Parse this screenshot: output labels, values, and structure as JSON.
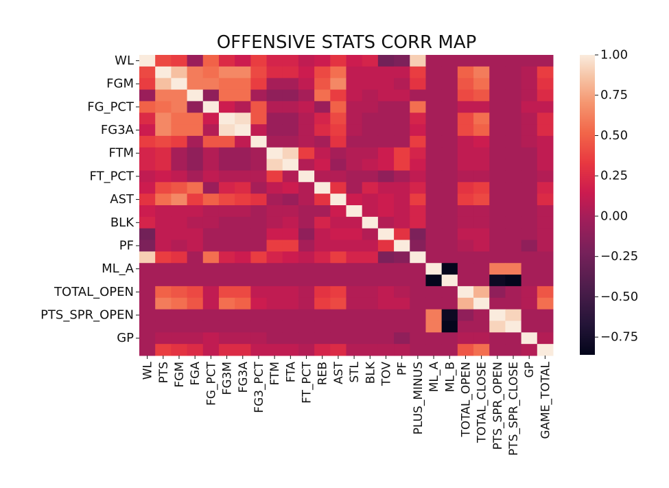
{
  "chart_data": {
    "type": "heatmap",
    "title": "OFFENSIVE STATS CORR MAP",
    "x_labels": [
      "WL",
      "PTS",
      "FGM",
      "FGA",
      "FG_PCT",
      "FG3M",
      "FG3A",
      "FG3_PCT",
      "FTM",
      "FTA",
      "FT_PCT",
      "REB",
      "AST",
      "STL",
      "BLK",
      "TOV",
      "PF",
      "PLUS_MINUS",
      "ML_A",
      "ML_B",
      "TOTAL_OPEN",
      "TOTAL_CLOSE",
      "PTS_SPR_OPEN",
      "PTS_SPR_CLOSE",
      "GP",
      "GAME_TOTAL"
    ],
    "y_labels": [
      "WL",
      "",
      "FGM",
      "",
      "FG_PCT",
      "",
      "FG3A",
      "",
      "FTM",
      "",
      "FT_PCT",
      "",
      "AST",
      "",
      "BLK",
      "",
      "PF",
      "",
      "ML_A",
      "",
      "TOTAL_OPEN",
      "",
      "PTS_SPR_OPEN",
      "",
      "GP",
      ""
    ],
    "values": [
      [
        1.0,
        0.4,
        0.35,
        -0.05,
        0.5,
        0.25,
        0.15,
        0.35,
        0.2,
        0.2,
        0.1,
        0.15,
        0.3,
        0.15,
        0.2,
        -0.25,
        -0.2,
        0.9,
        0.0,
        0.0,
        0.0,
        0.0,
        0.0,
        0.0,
        0.0,
        0.0
      ],
      [
        0.4,
        1.0,
        0.85,
        0.6,
        0.55,
        0.65,
        0.65,
        0.4,
        0.25,
        0.25,
        0.15,
        0.4,
        0.55,
        0.1,
        0.1,
        0.1,
        0.1,
        0.35,
        0.0,
        0.0,
        0.5,
        0.6,
        0.0,
        0.0,
        0.05,
        0.35
      ],
      [
        0.35,
        0.85,
        1.0,
        0.6,
        0.6,
        0.55,
        0.55,
        0.35,
        0.0,
        0.0,
        0.1,
        0.45,
        0.65,
        0.1,
        0.1,
        0.1,
        0.05,
        0.3,
        0.0,
        0.0,
        0.45,
        0.55,
        0.0,
        0.0,
        0.05,
        0.3
      ],
      [
        -0.05,
        0.6,
        0.6,
        1.0,
        -0.1,
        0.55,
        0.55,
        0.0,
        -0.1,
        -0.1,
        0.0,
        0.55,
        0.35,
        0.1,
        0.05,
        0.1,
        0.1,
        0.0,
        0.0,
        0.0,
        0.4,
        0.45,
        0.0,
        0.0,
        0.05,
        0.25
      ],
      [
        0.5,
        0.55,
        0.6,
        -0.1,
        1.0,
        0.15,
        0.05,
        0.45,
        0.05,
        0.05,
        0.1,
        -0.05,
        0.5,
        0.05,
        0.05,
        0.0,
        0.0,
        0.55,
        0.0,
        0.0,
        0.1,
        0.1,
        0.0,
        0.0,
        0.1,
        0.1
      ],
      [
        0.25,
        0.65,
        0.55,
        0.55,
        0.15,
        1.0,
        0.95,
        0.45,
        -0.05,
        -0.05,
        0.05,
        0.2,
        0.4,
        0.05,
        0.0,
        0.0,
        0.0,
        0.2,
        0.0,
        0.0,
        0.4,
        0.55,
        0.0,
        0.0,
        0.05,
        0.25
      ],
      [
        0.15,
        0.65,
        0.55,
        0.55,
        0.05,
        0.95,
        1.0,
        0.1,
        -0.05,
        -0.05,
        0.05,
        0.25,
        0.35,
        0.05,
        0.0,
        0.0,
        0.0,
        0.15,
        0.0,
        0.0,
        0.4,
        0.5,
        0.0,
        0.0,
        0.05,
        0.25
      ],
      [
        0.35,
        0.4,
        0.35,
        0.0,
        0.45,
        0.45,
        0.1,
        1.0,
        0.0,
        0.0,
        0.05,
        0.0,
        0.3,
        0.0,
        0.0,
        0.0,
        0.0,
        0.35,
        0.0,
        0.0,
        0.1,
        0.15,
        0.0,
        0.0,
        0.05,
        0.1
      ],
      [
        0.2,
        0.25,
        0.0,
        -0.1,
        0.05,
        -0.05,
        -0.05,
        0.0,
        1.0,
        0.92,
        0.35,
        0.1,
        0.0,
        0.05,
        0.05,
        0.15,
        0.35,
        0.2,
        0.0,
        0.0,
        0.1,
        0.1,
        0.0,
        0.0,
        0.0,
        0.1
      ],
      [
        0.2,
        0.25,
        0.0,
        -0.1,
        0.05,
        -0.05,
        -0.05,
        0.0,
        0.92,
        1.0,
        0.05,
        0.15,
        -0.05,
        0.05,
        0.1,
        0.15,
        0.35,
        0.15,
        0.0,
        0.0,
        0.1,
        0.1,
        0.0,
        0.0,
        0.0,
        0.1
      ],
      [
        0.1,
        0.15,
        0.1,
        0.0,
        0.1,
        0.05,
        0.05,
        0.05,
        0.35,
        0.05,
        1.0,
        0.05,
        0.05,
        0.0,
        0.0,
        -0.1,
        0.0,
        0.1,
        0.0,
        0.0,
        0.05,
        0.05,
        0.0,
        0.0,
        0.0,
        0.05
      ],
      [
        0.15,
        0.4,
        0.45,
        0.55,
        -0.05,
        0.2,
        0.25,
        0.0,
        0.1,
        0.15,
        0.05,
        1.0,
        0.3,
        0.0,
        0.2,
        0.1,
        0.1,
        0.2,
        0.0,
        0.0,
        0.3,
        0.35,
        0.0,
        0.0,
        0.0,
        0.2
      ],
      [
        0.3,
        0.55,
        0.65,
        0.35,
        0.5,
        0.4,
        0.35,
        0.3,
        0.0,
        -0.05,
        0.05,
        0.3,
        1.0,
        0.15,
        0.1,
        0.15,
        0.1,
        0.35,
        0.0,
        0.0,
        0.35,
        0.4,
        0.0,
        0.0,
        0.0,
        0.25
      ],
      [
        0.15,
        0.1,
        0.1,
        0.1,
        0.05,
        0.05,
        0.05,
        0.0,
        0.05,
        0.05,
        0.0,
        0.0,
        0.15,
        1.0,
        0.1,
        0.15,
        0.1,
        0.2,
        0.0,
        0.0,
        0.05,
        0.05,
        0.0,
        0.0,
        0.0,
        0.05
      ],
      [
        0.2,
        0.1,
        0.1,
        0.05,
        0.05,
        0.0,
        0.0,
        0.0,
        0.05,
        0.1,
        0.0,
        0.2,
        0.1,
        0.1,
        1.0,
        0.05,
        0.1,
        0.2,
        0.0,
        0.0,
        0.05,
        0.05,
        0.0,
        0.0,
        0.0,
        0.05
      ],
      [
        -0.25,
        0.1,
        0.1,
        0.1,
        0.0,
        0.0,
        0.0,
        0.0,
        0.15,
        0.15,
        -0.1,
        0.1,
        0.15,
        0.15,
        0.05,
        1.0,
        0.3,
        -0.2,
        0.0,
        0.0,
        0.1,
        0.1,
        0.0,
        0.0,
        0.0,
        0.05
      ],
      [
        -0.2,
        0.1,
        0.05,
        0.1,
        0.0,
        0.0,
        0.0,
        0.0,
        0.35,
        0.35,
        0.0,
        0.1,
        0.1,
        0.1,
        0.1,
        0.3,
        1.0,
        -0.15,
        0.0,
        0.0,
        0.05,
        0.1,
        0.0,
        0.0,
        -0.1,
        0.05
      ],
      [
        0.9,
        0.35,
        0.3,
        0.0,
        0.55,
        0.2,
        0.15,
        0.35,
        0.2,
        0.15,
        0.1,
        0.2,
        0.35,
        0.2,
        0.2,
        -0.2,
        -0.15,
        1.0,
        0.0,
        0.0,
        0.0,
        0.0,
        0.0,
        0.0,
        0.0,
        0.0
      ],
      [
        0.0,
        0.0,
        0.0,
        0.0,
        0.0,
        0.0,
        0.0,
        0.0,
        0.0,
        0.0,
        0.0,
        0.0,
        0.0,
        0.0,
        0.0,
        0.0,
        0.0,
        0.0,
        1.0,
        -0.85,
        0.0,
        0.0,
        0.6,
        0.6,
        0.0,
        0.0
      ],
      [
        0.0,
        0.0,
        0.0,
        0.0,
        0.0,
        0.0,
        0.0,
        0.0,
        0.0,
        0.0,
        0.0,
        0.0,
        0.0,
        0.0,
        0.0,
        0.0,
        0.0,
        0.0,
        -0.85,
        1.0,
        0.0,
        0.0,
        -0.8,
        -0.85,
        0.0,
        0.0
      ],
      [
        0.0,
        0.5,
        0.45,
        0.4,
        0.1,
        0.4,
        0.4,
        0.1,
        0.1,
        0.1,
        0.05,
        0.3,
        0.35,
        0.05,
        0.05,
        0.1,
        0.05,
        0.0,
        0.0,
        0.0,
        1.0,
        0.8,
        -0.1,
        0.0,
        0.05,
        0.45
      ],
      [
        0.0,
        0.6,
        0.55,
        0.45,
        0.1,
        0.55,
        0.5,
        0.15,
        0.1,
        0.1,
        0.05,
        0.35,
        0.4,
        0.05,
        0.05,
        0.1,
        0.1,
        0.0,
        0.0,
        0.0,
        0.8,
        1.0,
        0.0,
        0.0,
        0.05,
        0.55
      ],
      [
        0.0,
        0.0,
        0.0,
        0.0,
        0.0,
        0.0,
        0.0,
        0.0,
        0.0,
        0.0,
        0.0,
        0.0,
        0.0,
        0.0,
        0.0,
        0.0,
        0.0,
        0.0,
        0.6,
        -0.8,
        -0.1,
        0.0,
        1.0,
        0.92,
        0.0,
        0.0
      ],
      [
        0.0,
        0.0,
        0.0,
        0.0,
        0.0,
        0.0,
        0.0,
        0.0,
        0.0,
        0.0,
        0.0,
        0.0,
        0.0,
        0.0,
        0.0,
        0.0,
        0.0,
        0.0,
        0.6,
        -0.85,
        0.0,
        0.0,
        0.92,
        1.0,
        0.0,
        0.0
      ],
      [
        0.0,
        0.05,
        0.05,
        0.05,
        0.1,
        0.05,
        0.05,
        0.05,
        0.0,
        0.0,
        0.0,
        0.0,
        0.0,
        0.0,
        0.0,
        0.0,
        -0.1,
        0.0,
        0.0,
        0.0,
        0.05,
        0.05,
        0.0,
        0.0,
        1.0,
        0.05
      ],
      [
        0.0,
        0.35,
        0.3,
        0.25,
        0.1,
        0.25,
        0.25,
        0.1,
        0.1,
        0.1,
        0.05,
        0.2,
        0.25,
        0.05,
        0.05,
        0.05,
        0.05,
        0.0,
        0.0,
        0.0,
        0.45,
        0.55,
        0.0,
        0.0,
        0.05,
        1.0
      ]
    ],
    "colorbar": {
      "ticks": [
        1.0,
        0.75,
        0.5,
        0.25,
        0.0,
        -0.25,
        -0.5,
        -0.75
      ],
      "tick_labels": [
        "1.00",
        "0.75",
        "0.50",
        "0.25",
        "0.00",
        "−0.25",
        "−0.50",
        "−0.75"
      ],
      "range": [
        -0.86,
        1.0
      ]
    },
    "colormap": "rocket"
  }
}
